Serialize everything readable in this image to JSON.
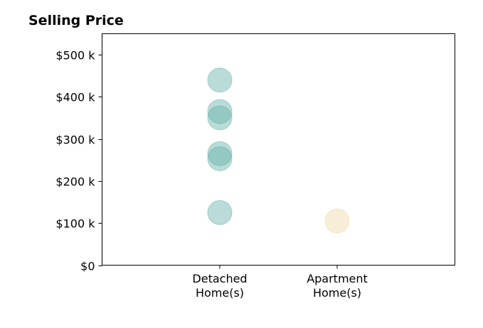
{
  "chart_data": {
    "type": "scatter",
    "title": "Selling Price",
    "xlabel": "",
    "ylabel": "",
    "categories": [
      [
        "Detached",
        "Home(s)"
      ],
      [
        "Apartment",
        "Home(s)"
      ]
    ],
    "ylim": [
      0,
      550000
    ],
    "yticks": [
      {
        "value": 0,
        "label": "$0"
      },
      {
        "value": 100000,
        "label": "$100 k"
      },
      {
        "value": 200000,
        "label": "$200 k"
      },
      {
        "value": 300000,
        "label": "$300 k"
      },
      {
        "value": 400000,
        "label": "$400 k"
      },
      {
        "value": 500000,
        "label": "$500 k"
      }
    ],
    "grid": false,
    "series": [
      {
        "category": 0,
        "color": "#66b2a8",
        "values": [
          440000,
          365000,
          350000,
          265000,
          253000,
          125000
        ]
      },
      {
        "category": 1,
        "color": "#f0d9a6",
        "values": [
          105000
        ]
      }
    ]
  }
}
